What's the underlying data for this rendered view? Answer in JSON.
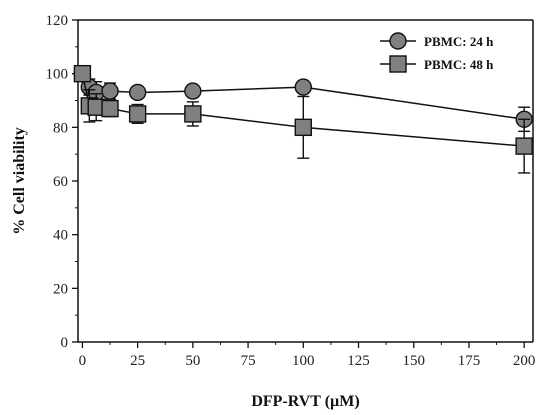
{
  "chart_data": {
    "type": "line",
    "title": "",
    "xlabel": "DFP-RVT (µM)",
    "ylabel": "% Cell viability",
    "xlim": [
      -2,
      204
    ],
    "ylim": [
      0,
      120
    ],
    "xticks": [
      0,
      25,
      50,
      75,
      100,
      125,
      150,
      175,
      200
    ],
    "yticks": [
      0,
      20,
      40,
      60,
      80,
      100,
      120
    ],
    "xtick_labels": [
      "0",
      "25",
      "50",
      "75",
      "100",
      "125",
      "150",
      "175",
      "200"
    ],
    "ytick_labels": [
      "0",
      "20",
      "40",
      "60",
      "80",
      "100",
      "120"
    ],
    "grid": false,
    "legend_position": "top-right",
    "series": [
      {
        "name": "PBMC: 24 h",
        "marker": "circle",
        "color": "#808080",
        "x": [
          0,
          3.125,
          6.25,
          12.5,
          25,
          50,
          100,
          200
        ],
        "y": [
          100,
          95,
          93,
          93.5,
          93,
          93.5,
          95,
          83
        ],
        "err": [
          0,
          3,
          4,
          3,
          2,
          2,
          2,
          4.5
        ]
      },
      {
        "name": "PBMC: 48 h",
        "marker": "square",
        "color": "#808080",
        "x": [
          0,
          3.125,
          6.25,
          12.5,
          25,
          50,
          100,
          200
        ],
        "y": [
          100,
          88,
          87.5,
          87,
          85,
          85,
          80,
          73
        ],
        "err": [
          0,
          6,
          5,
          3,
          3.5,
          4.5,
          11.5,
          10
        ]
      }
    ]
  }
}
